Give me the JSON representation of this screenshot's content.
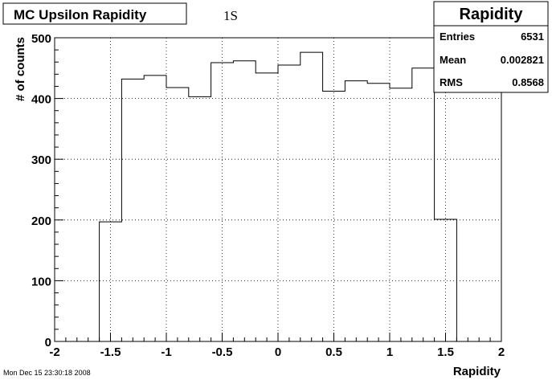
{
  "chart_data": {
    "type": "histogram",
    "title": "MC Upsilon Rapidity",
    "annotation": "1S",
    "xlabel": "Rapidity",
    "ylabel": "# of counts",
    "xlim": [
      -2,
      2
    ],
    "ylim": [
      0,
      500
    ],
    "x_ticks": [
      -2,
      -1.5,
      -1,
      -0.5,
      0,
      0.5,
      1,
      1.5,
      2
    ],
    "x_tick_labels": [
      "-2",
      "-1.5",
      "-1",
      "-0.5",
      "0",
      "0.5",
      "1",
      "1.5",
      "2"
    ],
    "y_ticks": [
      0,
      100,
      200,
      300,
      400,
      500
    ],
    "y_tick_labels": [
      "0",
      "100",
      "200",
      "300",
      "400",
      "500"
    ],
    "grid": true,
    "bin_edges": [
      -1.6,
      -1.4,
      -1.2,
      -1.0,
      -0.8,
      -0.6,
      -0.4,
      -0.2,
      0.0,
      0.2,
      0.4,
      0.6,
      0.8,
      1.0,
      1.2,
      1.4,
      1.6
    ],
    "values": [
      197,
      432,
      438,
      418,
      403,
      459,
      462,
      442,
      455,
      476,
      412,
      429,
      425,
      417,
      450,
      201
    ],
    "stats_box": {
      "title": "Rapidity",
      "rows": [
        {
          "label": "Entries",
          "value": "6531"
        },
        {
          "label": "Mean",
          "value": "0.002821"
        },
        {
          "label": "RMS",
          "value": "0.8568"
        }
      ],
      "placement": "top-right"
    },
    "timestamp": "Mon Dec 15 23:30:18 2008"
  }
}
